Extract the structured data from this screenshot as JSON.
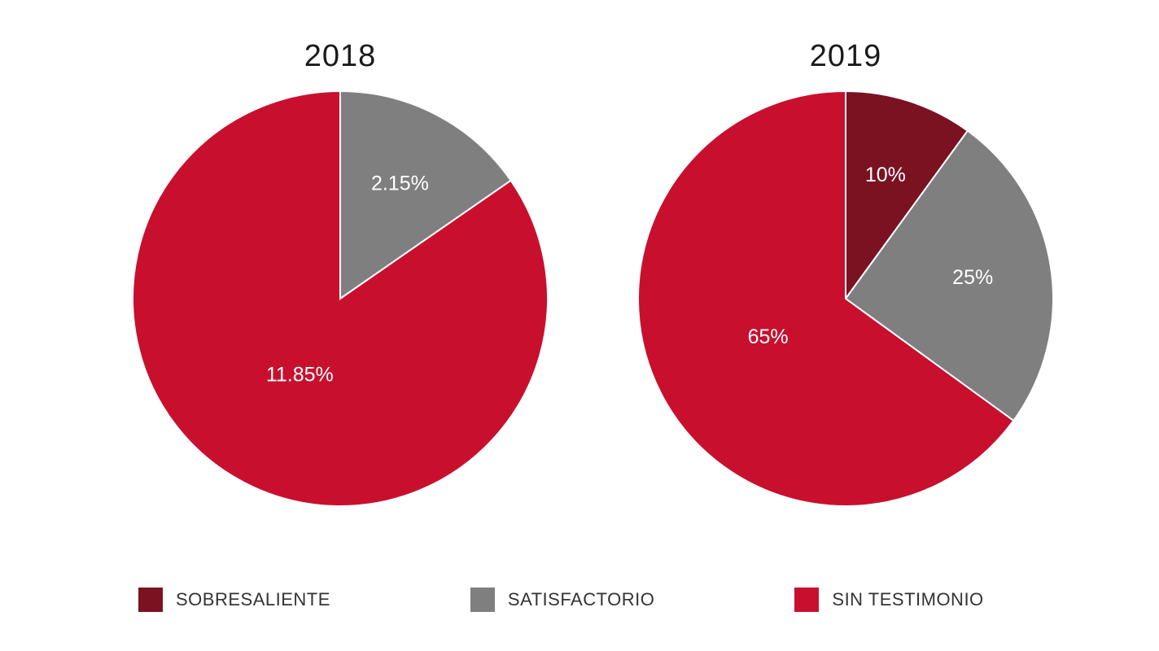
{
  "page": {
    "background": "#ffffff"
  },
  "palette": {
    "sobresaliente": "#7B1222",
    "satisfactorio": "#7F7F7F",
    "sin_testimonio": "#C8102E"
  },
  "chart_data": [
    {
      "type": "pie",
      "title": "2018",
      "labels": [
        "SATISFACTORIO",
        "SIN TESTIMONIO"
      ],
      "values": [
        2.15,
        11.85
      ],
      "data_labels": [
        "2.15%",
        "11.85%"
      ],
      "colors": [
        "#7F7F7F",
        "#C8102E"
      ],
      "start_angle_deg": 0,
      "direction": "clockwise",
      "label_color": "#ffffff"
    },
    {
      "type": "pie",
      "title": "2019",
      "labels": [
        "SOBRESALIENTE",
        "SATISFACTORIO",
        "SIN TESTIMONIO"
      ],
      "values": [
        10,
        25,
        65
      ],
      "data_labels": [
        "10%",
        "25%",
        "65%"
      ],
      "colors": [
        "#7B1222",
        "#7F7F7F",
        "#C8102E"
      ],
      "start_angle_deg": 0,
      "direction": "clockwise",
      "label_color": "#ffffff"
    }
  ],
  "legend": {
    "items": [
      {
        "label": "SOBRESALIENTE",
        "color": "#7B1222"
      },
      {
        "label": "SATISFACTORIO",
        "color": "#7F7F7F"
      },
      {
        "label": "SIN TESTIMONIO",
        "color": "#C8102E"
      }
    ]
  }
}
